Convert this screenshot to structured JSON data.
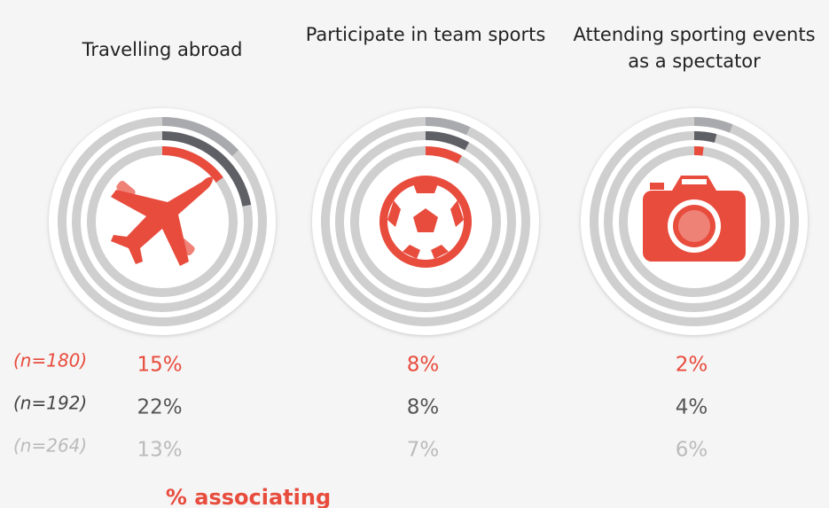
{
  "chart_data": {
    "type": "radial-bar",
    "categories": [
      "Travelling abroad",
      "Participate in team sports",
      "Attending sporting events as a spectator"
    ],
    "series": [
      {
        "name": "(n=180)",
        "color": "#e84c3d",
        "values": [
          15,
          8,
          2
        ],
        "value_labels": [
          "15%",
          "8%",
          "2%"
        ]
      },
      {
        "name": "(n=192)",
        "color": "#5f6066",
        "values": [
          22,
          8,
          4
        ],
        "value_labels": [
          "22%",
          "8%",
          "4%"
        ]
      },
      {
        "name": "(n=264)",
        "color": "#a9aaad",
        "values": [
          13,
          7,
          6
        ],
        "value_labels": [
          "13%",
          "7%",
          "6%"
        ]
      }
    ],
    "note": "% associating"
  }
}
